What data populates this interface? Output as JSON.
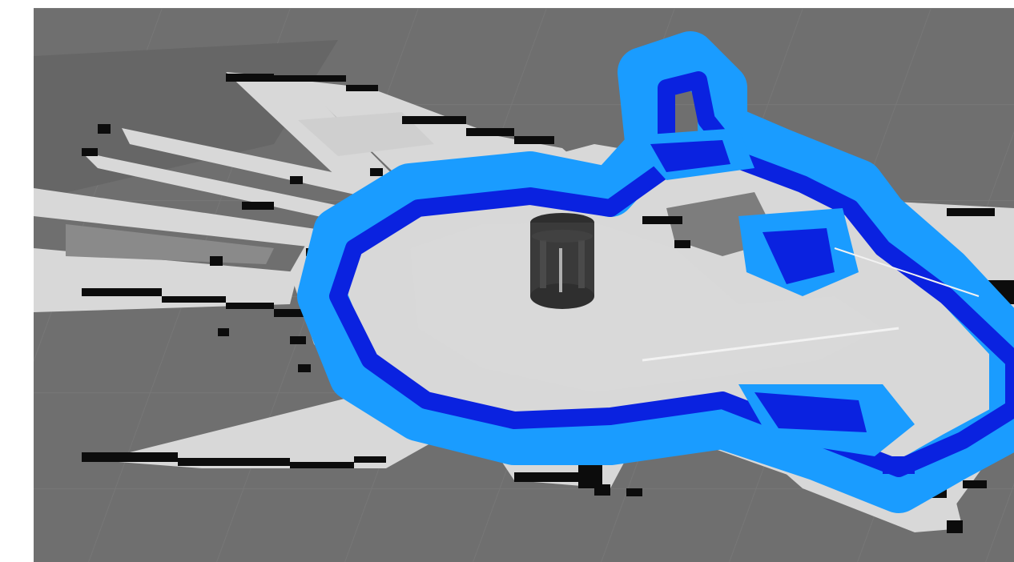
{
  "viewport": {
    "title": "",
    "colors": {
      "unknown_space": "#6f6f6f",
      "free_space": "#d8d8d8",
      "obstacle": "#0c0c0c",
      "inflation_outer": "#1a9cff",
      "inflation_inner": "#0a22e0",
      "robot": "#3a3a3a",
      "grid_line": "#7a7a7a"
    },
    "icons": {
      "robot": "robot-icon"
    }
  }
}
